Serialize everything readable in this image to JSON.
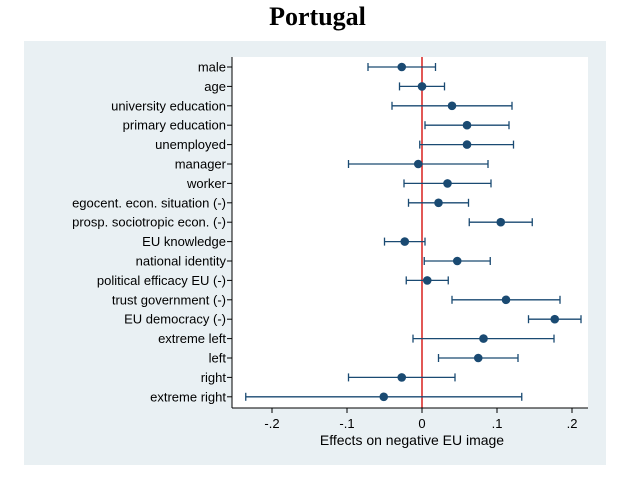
{
  "chart_data": {
    "type": "scatter",
    "subtype": "coefficient-plot",
    "title": "Portugal",
    "xlabel": "Effects on negative EU image",
    "ylabel": "",
    "xlim": [
      -0.24,
      0.225
    ],
    "xticks": [
      -0.2,
      -0.1,
      0,
      0.1,
      0.2
    ],
    "xtick_labels": [
      "-.2",
      "-.1",
      "0",
      ".1",
      ".2"
    ],
    "reference_line": 0,
    "colors": {
      "background": "#e9f0f3",
      "plot_area": "#ffffff",
      "marker": "#1a4a72",
      "error_bar": "#1a4a72",
      "reference_line": "#d9211e"
    },
    "variables": [
      {
        "label": "male",
        "estimate": -0.027,
        "ci_low": -0.072,
        "ci_high": 0.018
      },
      {
        "label": "age",
        "estimate": 0.0,
        "ci_low": -0.03,
        "ci_high": 0.03
      },
      {
        "label": "university education",
        "estimate": 0.04,
        "ci_low": -0.04,
        "ci_high": 0.12
      },
      {
        "label": "primary education",
        "estimate": 0.06,
        "ci_low": 0.004,
        "ci_high": 0.116
      },
      {
        "label": "unemployed",
        "estimate": 0.06,
        "ci_low": -0.003,
        "ci_high": 0.122
      },
      {
        "label": "manager",
        "estimate": -0.005,
        "ci_low": -0.098,
        "ci_high": 0.088
      },
      {
        "label": "worker",
        "estimate": 0.034,
        "ci_low": -0.024,
        "ci_high": 0.092
      },
      {
        "label": "egocent. econ. situation (-)",
        "estimate": 0.022,
        "ci_low": -0.018,
        "ci_high": 0.062
      },
      {
        "label": "prosp. sociotropic econ. (-)",
        "estimate": 0.105,
        "ci_low": 0.063,
        "ci_high": 0.147
      },
      {
        "label": "EU knowledge",
        "estimate": -0.023,
        "ci_low": -0.05,
        "ci_high": 0.004
      },
      {
        "label": "national identity",
        "estimate": 0.047,
        "ci_low": 0.003,
        "ci_high": 0.091
      },
      {
        "label": "political efficacy EU (-)",
        "estimate": 0.007,
        "ci_low": -0.021,
        "ci_high": 0.035
      },
      {
        "label": "trust government (-)",
        "estimate": 0.112,
        "ci_low": 0.04,
        "ci_high": 0.184
      },
      {
        "label": "EU democracy (-)",
        "estimate": 0.177,
        "ci_low": 0.142,
        "ci_high": 0.212
      },
      {
        "label": "extreme left",
        "estimate": 0.082,
        "ci_low": -0.012,
        "ci_high": 0.176
      },
      {
        "label": "left",
        "estimate": 0.075,
        "ci_low": 0.022,
        "ci_high": 0.128
      },
      {
        "label": "right",
        "estimate": -0.027,
        "ci_low": -0.098,
        "ci_high": 0.044
      },
      {
        "label": "extreme right",
        "estimate": -0.051,
        "ci_low": -0.235,
        "ci_high": 0.133
      }
    ]
  }
}
